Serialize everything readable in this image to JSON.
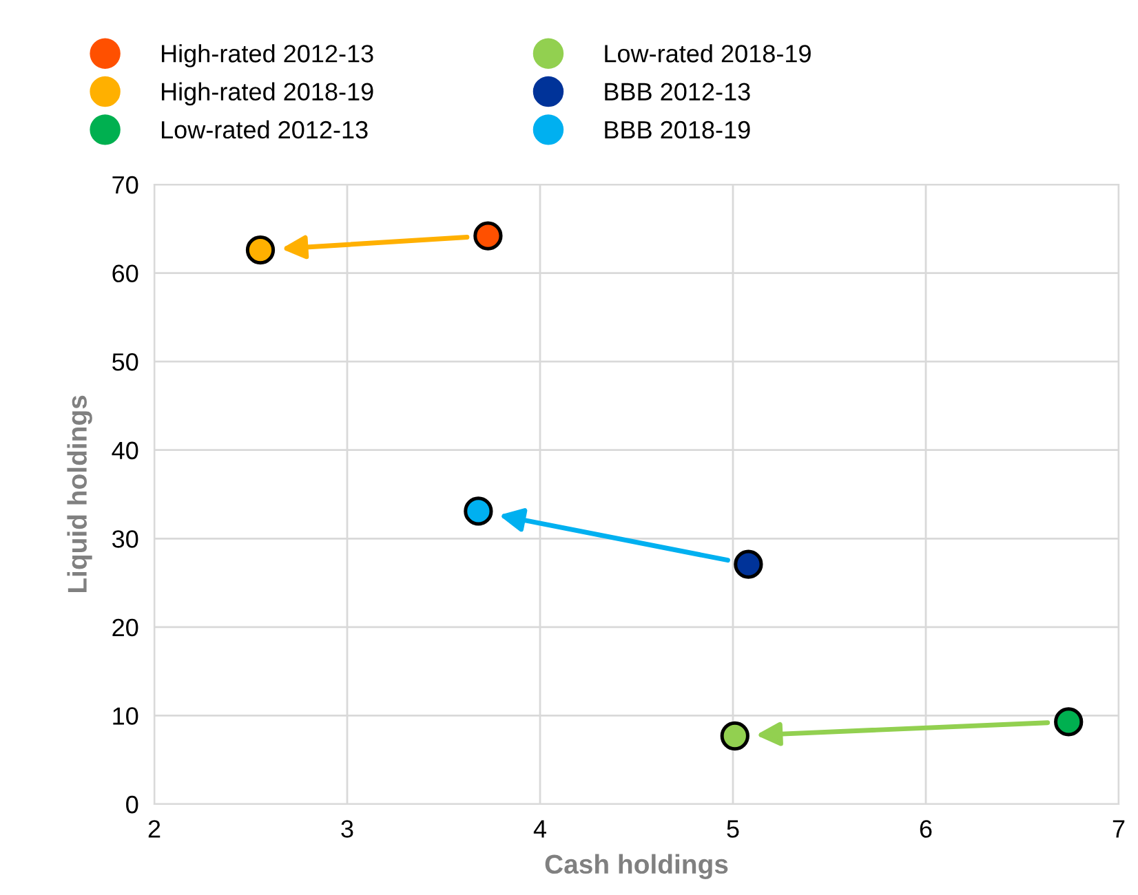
{
  "chart_data": {
    "type": "scatter",
    "xlabel": "Cash holdings",
    "ylabel": "Liquid holdings",
    "xlim": [
      2,
      7
    ],
    "xticks": [
      2,
      3,
      4,
      5,
      6,
      7
    ],
    "ylim": [
      0,
      70
    ],
    "yticks": [
      0,
      10,
      20,
      30,
      40,
      50,
      60,
      70
    ],
    "grid": true,
    "legend": "top",
    "marker": "circle",
    "series": [
      {
        "name": "High-rated 2012-13",
        "color": "#ff5000",
        "x": [
          3.73
        ],
        "values": [
          64.2
        ]
      },
      {
        "name": "High-rated 2018-19",
        "color": "#ffb000",
        "x": [
          2.55
        ],
        "values": [
          62.6
        ]
      },
      {
        "name": "Low-rated 2012-13",
        "color": "#00b050",
        "x": [
          6.74
        ],
        "values": [
          9.3
        ]
      },
      {
        "name": "Low-rated 2018-19",
        "color": "#92d050",
        "x": [
          5.01
        ],
        "values": [
          7.7
        ]
      },
      {
        "name": "BBB 2012-13",
        "color": "#003399",
        "x": [
          5.08
        ],
        "values": [
          27.1
        ]
      },
      {
        "name": "BBB 2018-19",
        "color": "#00b0f0",
        "x": [
          3.68
        ],
        "values": [
          33.1
        ]
      }
    ]
  }
}
